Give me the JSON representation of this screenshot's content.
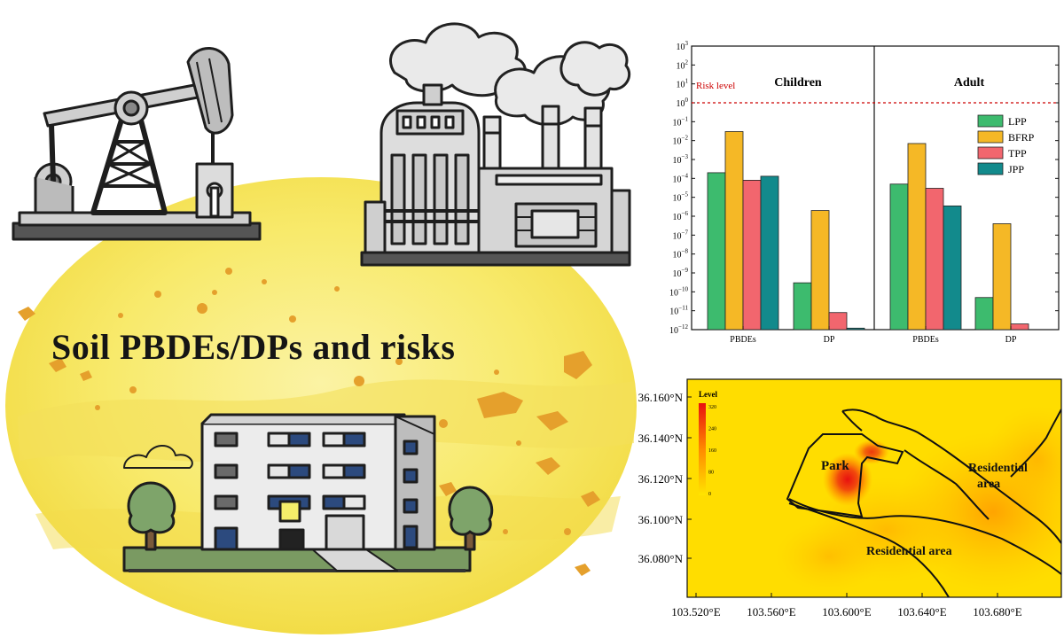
{
  "title": "Soil PBDEs/DPs and risks",
  "illustration": {
    "icons": [
      "oil-pump-jack-icon",
      "chemical-factory-icon",
      "residential-building-icon",
      "tree-icon",
      "cloud-icon"
    ],
    "colors": {
      "background_blob": "#f7e65a",
      "particles": "#e8a02a"
    }
  },
  "chart_data": [
    {
      "type": "bar",
      "yscale": "log",
      "ylim_exponents": [
        -12,
        3
      ],
      "yticks_exponents": [
        3,
        2,
        1,
        0,
        -1,
        -2,
        -3,
        -4,
        -5,
        -6,
        -7,
        -8,
        -9,
        -10,
        -11,
        -12
      ],
      "tick_base": "10",
      "risk_line": {
        "value": 1,
        "label": "Risk level",
        "color": "#cc0000"
      },
      "panels": [
        {
          "label": "Children",
          "categories": [
            "PBDEs",
            "DP"
          ]
        },
        {
          "label": "Adult",
          "categories": [
            "PBDEs",
            "DP"
          ]
        }
      ],
      "series": [
        {
          "name": "LPP",
          "color": "#3dbb6e",
          "values": [
            0.0002,
            3e-10,
            5e-05,
            5e-11
          ]
        },
        {
          "name": "BFRP",
          "color": "#f5b826",
          "values": [
            0.03,
            2e-06,
            0.007,
            4e-07
          ]
        },
        {
          "name": "TPP",
          "color": "#f2666e",
          "values": [
            8e-05,
            8e-12,
            3e-05,
            2e-12
          ]
        },
        {
          "name": "JPP",
          "color": "#128a8c",
          "values": [
            0.00013,
            1.2e-12,
            3.5e-06,
            3e-13
          ]
        }
      ],
      "legend_position": "top-right"
    },
    {
      "type": "heatmap",
      "legend_title": "Level",
      "colorbar_ticks": [
        "320",
        "240",
        "160",
        "80",
        "0"
      ],
      "colorbar_range": [
        0,
        320
      ],
      "xticks": [
        "103.520°E",
        "103.560°E",
        "103.600°E",
        "103.640°E",
        "103.680°E"
      ],
      "yticks": [
        "36.160°N",
        "36.140°N",
        "36.120°N",
        "36.100°N",
        "36.080°N"
      ],
      "regions": [
        {
          "label": "Park"
        },
        {
          "label_lines": [
            "Residential",
            "area"
          ]
        },
        {
          "label": "Residential area"
        }
      ],
      "hotspot_level": 320,
      "colors": {
        "low": "#ffe400",
        "mid": "#ff9a00",
        "high": "#e81010"
      }
    }
  ]
}
